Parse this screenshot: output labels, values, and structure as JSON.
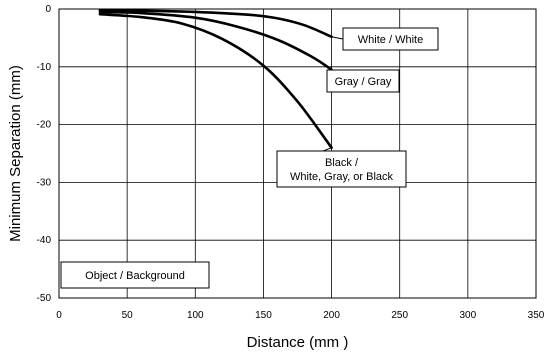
{
  "chart_data": {
    "type": "line",
    "title": "",
    "xlabel": "Distance (mm )",
    "ylabel": "Minimum Separation (mm)",
    "xlim": [
      0,
      350
    ],
    "ylim": [
      -50,
      0
    ],
    "x_ticks": [
      0,
      50,
      100,
      150,
      200,
      250,
      300,
      350
    ],
    "y_ticks": [
      0,
      -10,
      -20,
      -30,
      -40,
      -50
    ],
    "grid": true,
    "line_color": "#000000",
    "series": [
      {
        "name": "White / White",
        "points": [
          [
            30,
            -0.2
          ],
          [
            60,
            -0.3
          ],
          [
            100,
            -0.5
          ],
          [
            140,
            -1.0
          ],
          [
            160,
            -1.6
          ],
          [
            180,
            -2.8
          ],
          [
            200,
            -4.8
          ]
        ]
      },
      {
        "name": "Gray / Gray",
        "points": [
          [
            30,
            -0.5
          ],
          [
            60,
            -0.7
          ],
          [
            100,
            -1.5
          ],
          [
            130,
            -3.0
          ],
          [
            160,
            -5.3
          ],
          [
            185,
            -8.2
          ],
          [
            200,
            -10.5
          ]
        ]
      },
      {
        "name": "Black / White, Gray, or Black",
        "points": [
          [
            30,
            -0.9
          ],
          [
            60,
            -1.4
          ],
          [
            90,
            -2.5
          ],
          [
            120,
            -5.2
          ],
          [
            150,
            -9.8
          ],
          [
            175,
            -16.0
          ],
          [
            200,
            -24.0
          ]
        ]
      }
    ],
    "annotations": [
      {
        "lines": [
          "White / White"
        ],
        "anchor_x": 200,
        "anchor_y": -4.8
      },
      {
        "lines": [
          "Gray / Gray"
        ],
        "anchor_x": 200,
        "anchor_y": -10.5
      },
      {
        "lines": [
          "Black /",
          "White, Gray, or Black"
        ],
        "anchor_x": 200,
        "anchor_y": -24.0
      },
      {
        "lines": [
          "Object / Background"
        ],
        "anchor_x": null,
        "anchor_y": null
      }
    ]
  }
}
